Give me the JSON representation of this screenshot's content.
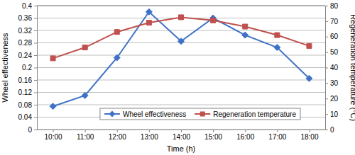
{
  "chart_data": {
    "type": "line",
    "x_label": "Time (h)",
    "y_label": "Wheel effectiveness",
    "y2_label": "Regeneration temperature (°C)",
    "categories": [
      "10:00",
      "11:00",
      "12:00",
      "13:00",
      "14:00",
      "15:00",
      "16:00",
      "17:00",
      "18:00"
    ],
    "series": [
      {
        "name": "Wheel effectiveness",
        "color": "#3f72c6",
        "marker": "diamond",
        "line_style": "solid",
        "values": [
          0.075,
          0.11,
          0.232,
          0.38,
          0.285,
          0.36,
          0.305,
          0.265,
          0.165
        ]
      },
      {
        "name": "Regeneration temperature",
        "color": "#c0504d",
        "marker": "square",
        "line_style": "solid",
        "axis": "y2",
        "values": [
          46,
          53,
          63,
          69,
          72.5,
          70.5,
          66.5,
          61,
          54
        ]
      }
    ],
    "ylim": [
      0,
      0.4
    ],
    "yticks": [
      0,
      0.04,
      0.08,
      0.12,
      0.16,
      0.2,
      0.24,
      0.28,
      0.32,
      0.36,
      0.4
    ],
    "y2lim": [
      0,
      80
    ],
    "y2ticks": [
      0,
      10,
      20,
      30,
      40,
      50,
      60,
      70,
      80
    ],
    "grid": true,
    "legend": "bottom"
  }
}
